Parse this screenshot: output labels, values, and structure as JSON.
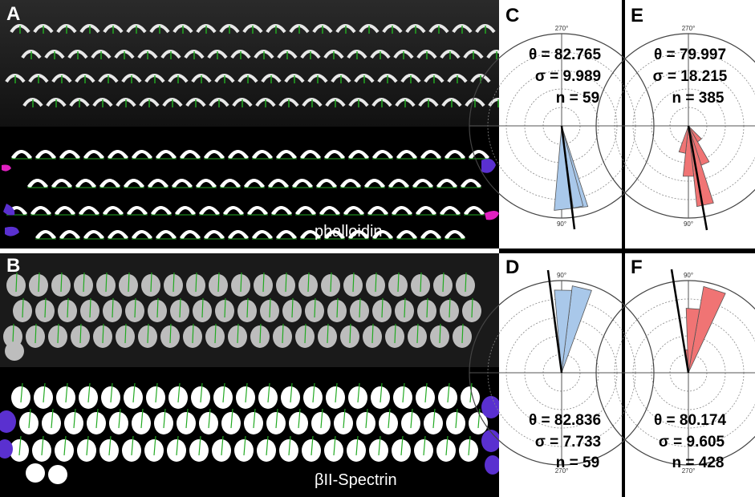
{
  "figure": {
    "panels": [
      {
        "id": "A",
        "label": "A",
        "caption": "phalloidin"
      },
      {
        "id": "B",
        "label": "B",
        "caption": "βII-Spectrin"
      },
      {
        "id": "C",
        "label": "C",
        "theta": "θ = 82.765",
        "sigma": "σ = 9.989",
        "n": "n = 59",
        "top_angle": "270°",
        "bottom_angle": "90°",
        "color": "#a9c8ea"
      },
      {
        "id": "D",
        "label": "D",
        "theta": "θ = 82.836",
        "sigma": "σ = 7.733",
        "n": "n = 59",
        "top_angle": "90°",
        "bottom_angle": "270°",
        "color": "#a9c8ea"
      },
      {
        "id": "E",
        "label": "E",
        "theta": "θ = 79.997",
        "sigma": "σ = 18.215",
        "n": "n = 385",
        "top_angle": "270°",
        "bottom_angle": "90°",
        "color": "#f07474"
      },
      {
        "id": "F",
        "label": "F",
        "theta": "θ = 80.174",
        "sigma": "σ = 9.605",
        "n": "n = 428",
        "top_angle": "90°",
        "bottom_angle": "270°",
        "color": "#f07474"
      }
    ],
    "colors": {
      "blue_fill": "#a9c8ea",
      "red_fill": "#f07474",
      "tick_arrow": "#22aa22",
      "cell_label": "#d2691e",
      "edge_cell": "#5a30d0",
      "edge_cell_magenta": "#e020c0"
    }
  }
}
